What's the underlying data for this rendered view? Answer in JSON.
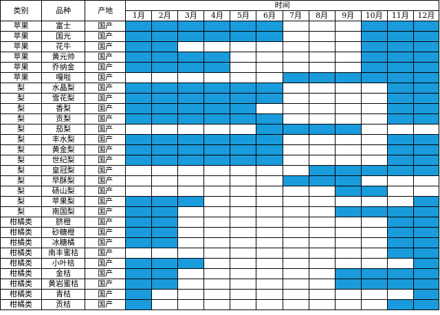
{
  "headers": {
    "category": "类别",
    "variety": "品种",
    "origin": "产地",
    "time": "时间"
  },
  "months": [
    "1月",
    "2月",
    "3月",
    "4月",
    "5月",
    "6月",
    "7月",
    "8月",
    "9月",
    "10月",
    "11月",
    "12月"
  ],
  "highlight_color": "#1a9bdc",
  "rows": [
    {
      "category": "苹果",
      "variety": "富士",
      "origin": "国产",
      "months": [
        1,
        1,
        1,
        1,
        1,
        1,
        0,
        0,
        0,
        1,
        1,
        1
      ]
    },
    {
      "category": "苹果",
      "variety": "国光",
      "origin": "国产",
      "months": [
        1,
        1,
        1,
        1,
        1,
        1,
        0,
        0,
        0,
        1,
        1,
        1
      ]
    },
    {
      "category": "苹果",
      "variety": "花牛",
      "origin": "国产",
      "months": [
        1,
        1,
        0,
        0,
        0,
        0,
        0,
        0,
        0,
        1,
        1,
        1
      ]
    },
    {
      "category": "苹果",
      "variety": "黄元帅",
      "origin": "国产",
      "months": [
        1,
        1,
        1,
        1,
        0,
        0,
        0,
        0,
        0,
        1,
        1,
        1
      ]
    },
    {
      "category": "苹果",
      "variety": "乔纳金",
      "origin": "国产",
      "months": [
        1,
        1,
        1,
        1,
        0,
        0,
        0,
        0,
        0,
        1,
        1,
        1
      ]
    },
    {
      "category": "苹果",
      "variety": "嘎啦",
      "origin": "国产",
      "months": [
        0,
        0,
        0,
        0,
        0,
        0,
        1,
        1,
        1,
        1,
        1,
        1
      ]
    },
    {
      "category": "梨",
      "variety": "水晶梨",
      "origin": "国产",
      "months": [
        1,
        1,
        1,
        1,
        1,
        1,
        0,
        0,
        0,
        0,
        1,
        1
      ]
    },
    {
      "category": "梨",
      "variety": "雪花梨",
      "origin": "国产",
      "months": [
        1,
        1,
        1,
        1,
        1,
        1,
        0,
        0,
        0,
        0,
        1,
        1
      ]
    },
    {
      "category": "梨",
      "variety": "香梨",
      "origin": "国产",
      "months": [
        1,
        1,
        1,
        1,
        1,
        0,
        0,
        0,
        0,
        0,
        1,
        1
      ]
    },
    {
      "category": "梨",
      "variety": "贡梨",
      "origin": "国产",
      "months": [
        1,
        1,
        1,
        1,
        1,
        1,
        0,
        0,
        0,
        0,
        1,
        1
      ]
    },
    {
      "category": "梨",
      "variety": "茄梨",
      "origin": "国产",
      "months": [
        0,
        0,
        0,
        0,
        0,
        1,
        1,
        1,
        1,
        0,
        0,
        0
      ]
    },
    {
      "category": "梨",
      "variety": "丰水梨",
      "origin": "国产",
      "months": [
        1,
        1,
        1,
        1,
        1,
        1,
        0,
        0,
        0,
        0,
        1,
        1
      ]
    },
    {
      "category": "梨",
      "variety": "黄金梨",
      "origin": "国产",
      "months": [
        1,
        1,
        1,
        1,
        1,
        1,
        0,
        0,
        0,
        0,
        1,
        1
      ]
    },
    {
      "category": "梨",
      "variety": "世纪梨",
      "origin": "国产",
      "months": [
        1,
        1,
        1,
        1,
        1,
        1,
        0,
        0,
        0,
        0,
        1,
        1
      ]
    },
    {
      "category": "梨",
      "variety": "皇冠梨",
      "origin": "国产",
      "months": [
        0,
        0,
        0,
        0,
        0,
        0,
        0,
        1,
        1,
        1,
        1,
        1
      ]
    },
    {
      "category": "梨",
      "variety": "早酥梨",
      "origin": "国产",
      "months": [
        0,
        0,
        0,
        0,
        0,
        0,
        1,
        1,
        1,
        0,
        0,
        0
      ]
    },
    {
      "category": "梨",
      "variety": "砀山梨",
      "origin": "国产",
      "months": [
        0,
        0,
        0,
        0,
        0,
        0,
        0,
        0,
        1,
        1,
        0,
        0
      ]
    },
    {
      "category": "梨",
      "variety": "苹果梨",
      "origin": "国产",
      "months": [
        1,
        1,
        1,
        0,
        0,
        0,
        0,
        0,
        0,
        0,
        0,
        1
      ]
    },
    {
      "category": "梨",
      "variety": "南国梨",
      "origin": "国产",
      "months": [
        1,
        1,
        0,
        0,
        0,
        0,
        0,
        0,
        1,
        1,
        1,
        1
      ]
    },
    {
      "category": "柑橘类",
      "variety": "脐橙",
      "origin": "国产",
      "months": [
        1,
        1,
        0,
        0,
        0,
        0,
        0,
        0,
        0,
        0,
        1,
        1
      ]
    },
    {
      "category": "柑橘类",
      "variety": "砂糖橙",
      "origin": "国产",
      "months": [
        1,
        1,
        0,
        0,
        0,
        0,
        0,
        0,
        0,
        0,
        1,
        1
      ]
    },
    {
      "category": "柑橘类",
      "variety": "冰糖橘",
      "origin": "国产",
      "months": [
        1,
        1,
        0,
        0,
        0,
        0,
        0,
        0,
        0,
        0,
        1,
        1
      ]
    },
    {
      "category": "柑橘类",
      "variety": "南丰蜜桔",
      "origin": "国产",
      "months": [
        0,
        0,
        0,
        0,
        0,
        0,
        0,
        0,
        0,
        0,
        1,
        1
      ]
    },
    {
      "category": "柑橘类",
      "variety": "小叶桔",
      "origin": "国产",
      "months": [
        1,
        1,
        1,
        0,
        0,
        0,
        0,
        0,
        0,
        0,
        0,
        1
      ]
    },
    {
      "category": "柑橘类",
      "variety": "金桔",
      "origin": "国产",
      "months": [
        1,
        1,
        0,
        0,
        0,
        0,
        0,
        0,
        1,
        1,
        1,
        1
      ]
    },
    {
      "category": "柑橘类",
      "variety": "黄岩蜜桔",
      "origin": "国产",
      "months": [
        1,
        1,
        0,
        0,
        0,
        0,
        0,
        0,
        1,
        1,
        1,
        1
      ]
    },
    {
      "category": "柑橘类",
      "variety": "青桔",
      "origin": "国产",
      "months": [
        1,
        0,
        0,
        0,
        0,
        0,
        0,
        0,
        0,
        0,
        0,
        1
      ]
    },
    {
      "category": "柑橘类",
      "variety": "贡桔",
      "origin": "国产",
      "months": [
        1,
        0,
        0,
        0,
        0,
        0,
        0,
        0,
        0,
        0,
        1,
        1
      ]
    }
  ]
}
